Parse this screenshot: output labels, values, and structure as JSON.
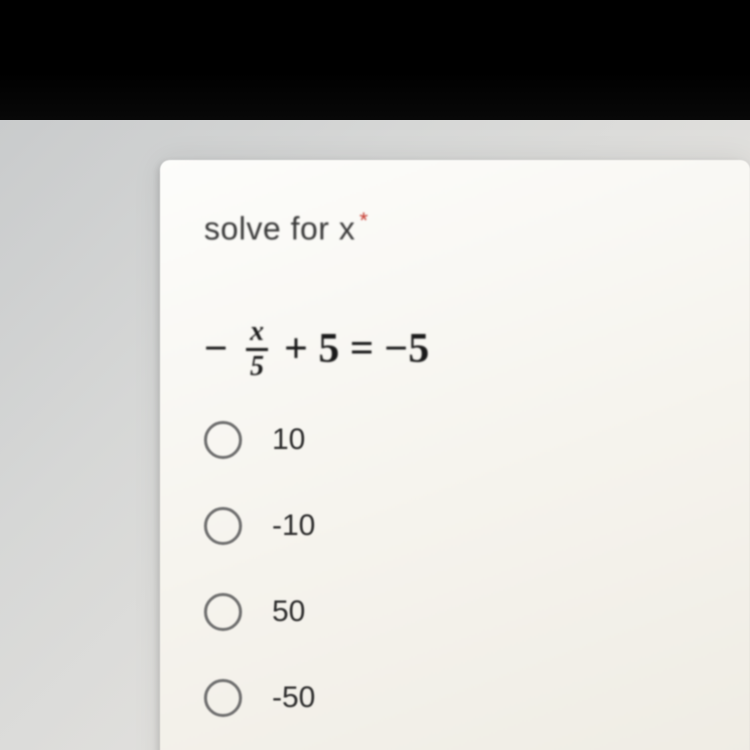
{
  "question": {
    "title": "solve for x",
    "required_marker": "*",
    "equation": {
      "leading_sign": "−",
      "fraction": {
        "numerator": "x",
        "denominator": "5"
      },
      "rest": "+ 5 = −5"
    }
  },
  "options": [
    {
      "label": "10"
    },
    {
      "label": "-10"
    },
    {
      "label": "50"
    },
    {
      "label": "-50"
    }
  ],
  "colors": {
    "black": "#000000",
    "desk": "#d8d8d5",
    "card": "#f7f5ef",
    "text": "#2b2b2b",
    "required": "#c5372c",
    "radio_border": "#6e6e6e"
  }
}
